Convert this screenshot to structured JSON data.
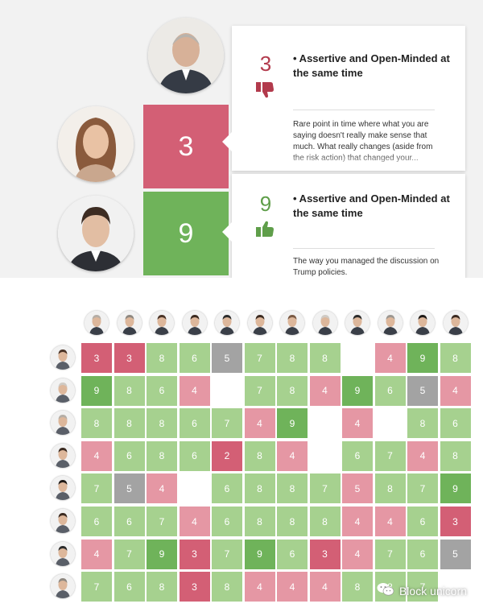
{
  "feedback_cards": [
    {
      "score": "3",
      "sentiment": "negative",
      "attribute": "• Assertive and Open-Minded at the same time",
      "comment": "Rare point in time where what you are saying doesn't really make sense that much. What really changes (aside from the risk action) that changed your..."
    },
    {
      "score": "9",
      "sentiment": "positive",
      "attribute": "• Assertive and Open-Minded at the same time",
      "comment": "The way you managed the discussion on Trump policies."
    }
  ],
  "score_tiles": [
    {
      "value": "3",
      "color": "#d35f75"
    },
    {
      "value": "9",
      "color": "#6fb35a"
    }
  ],
  "colors": {
    "low": "#d35f75",
    "mid_low": "#e597a4",
    "mid_high": "#a6d18f",
    "high": "#6fb35a",
    "neutral": "#a3a3a3",
    "blank": "#ffffff"
  },
  "matrix": {
    "columns": 12,
    "rows": [
      {
        "cells": [
          [
            "3",
            "low"
          ],
          [
            "3",
            "low"
          ],
          [
            "8",
            "mid_high"
          ],
          [
            "6",
            "mid_high"
          ],
          [
            "5",
            "neutral"
          ],
          [
            "7",
            "mid_high"
          ],
          [
            "8",
            "mid_high"
          ],
          [
            "8",
            "mid_high"
          ],
          [
            "",
            "blank"
          ],
          [
            "4",
            "mid_low"
          ],
          [
            "9",
            "high"
          ],
          [
            "8",
            "mid_high"
          ]
        ]
      },
      {
        "cells": [
          [
            "9",
            "high"
          ],
          [
            "8",
            "mid_high"
          ],
          [
            "6",
            "mid_high"
          ],
          [
            "4",
            "mid_low"
          ],
          [
            "",
            "blank"
          ],
          [
            "7",
            "mid_high"
          ],
          [
            "8",
            "mid_high"
          ],
          [
            "4",
            "mid_low"
          ],
          [
            "9",
            "high"
          ],
          [
            "6",
            "mid_high"
          ],
          [
            "5",
            "neutral"
          ],
          [
            "4",
            "mid_low"
          ]
        ]
      },
      {
        "cells": [
          [
            "8",
            "mid_high"
          ],
          [
            "8",
            "mid_high"
          ],
          [
            "8",
            "mid_high"
          ],
          [
            "6",
            "mid_high"
          ],
          [
            "7",
            "mid_high"
          ],
          [
            "4",
            "mid_low"
          ],
          [
            "9",
            "high"
          ],
          [
            "",
            "blank"
          ],
          [
            "4",
            "mid_low"
          ],
          [
            "",
            "blank"
          ],
          [
            "8",
            "mid_high"
          ],
          [
            "6",
            "mid_high"
          ]
        ]
      },
      {
        "cells": [
          [
            "4",
            "mid_low"
          ],
          [
            "6",
            "mid_high"
          ],
          [
            "8",
            "mid_high"
          ],
          [
            "6",
            "mid_high"
          ],
          [
            "2",
            "low"
          ],
          [
            "8",
            "mid_high"
          ],
          [
            "4",
            "mid_low"
          ],
          [
            "",
            "blank"
          ],
          [
            "6",
            "mid_high"
          ],
          [
            "7",
            "mid_high"
          ],
          [
            "4",
            "mid_low"
          ],
          [
            "8",
            "mid_high"
          ]
        ]
      },
      {
        "cells": [
          [
            "7",
            "mid_high"
          ],
          [
            "5",
            "neutral"
          ],
          [
            "4",
            "mid_low"
          ],
          [
            "",
            "blank"
          ],
          [
            "6",
            "mid_high"
          ],
          [
            "8",
            "mid_high"
          ],
          [
            "8",
            "mid_high"
          ],
          [
            "7",
            "mid_high"
          ],
          [
            "5",
            "mid_low"
          ],
          [
            "8",
            "mid_high"
          ],
          [
            "7",
            "mid_high"
          ],
          [
            "9",
            "high"
          ]
        ]
      },
      {
        "cells": [
          [
            "6",
            "mid_high"
          ],
          [
            "6",
            "mid_high"
          ],
          [
            "7",
            "mid_high"
          ],
          [
            "4",
            "mid_low"
          ],
          [
            "6",
            "mid_high"
          ],
          [
            "8",
            "mid_high"
          ],
          [
            "8",
            "mid_high"
          ],
          [
            "8",
            "mid_high"
          ],
          [
            "4",
            "mid_low"
          ],
          [
            "4",
            "mid_low"
          ],
          [
            "6",
            "mid_high"
          ],
          [
            "3",
            "low"
          ]
        ]
      },
      {
        "cells": [
          [
            "4",
            "mid_low"
          ],
          [
            "7",
            "mid_high"
          ],
          [
            "9",
            "high"
          ],
          [
            "3",
            "low"
          ],
          [
            "7",
            "mid_high"
          ],
          [
            "9",
            "high"
          ],
          [
            "6",
            "mid_high"
          ],
          [
            "3",
            "low"
          ],
          [
            "4",
            "mid_low"
          ],
          [
            "7",
            "mid_high"
          ],
          [
            "6",
            "mid_high"
          ],
          [
            "5",
            "neutral"
          ]
        ]
      },
      {
        "cells": [
          [
            "7",
            "mid_high"
          ],
          [
            "6",
            "mid_high"
          ],
          [
            "8",
            "mid_high"
          ],
          [
            "3",
            "low"
          ],
          [
            "8",
            "mid_high"
          ],
          [
            "4",
            "mid_low"
          ],
          [
            "4",
            "mid_low"
          ],
          [
            "4",
            "mid_low"
          ],
          [
            "8",
            "mid_high"
          ],
          [
            "8",
            "mid_high"
          ],
          [
            "7",
            "mid_high"
          ],
          [
            "",
            "blank"
          ]
        ]
      }
    ]
  },
  "watermark": {
    "icon": "wechat-icon",
    "text": "Block unicorn"
  }
}
